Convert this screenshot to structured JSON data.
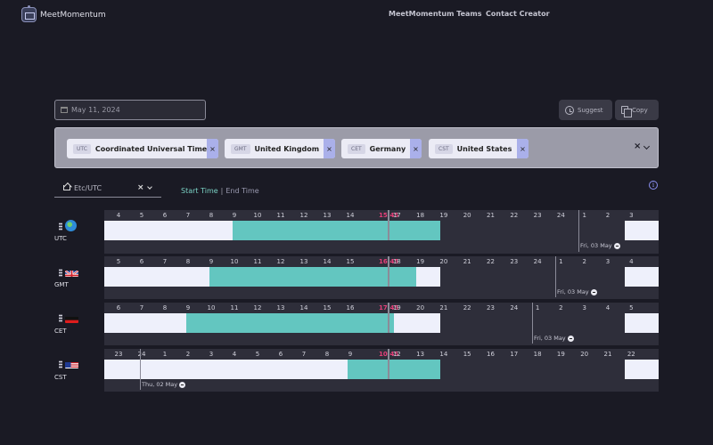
{
  "header": {
    "brand": "MeetMomentum",
    "nav": [
      "MeetMomentum Teams",
      "Contact Creator"
    ]
  },
  "toolbar": {
    "date": "May 11, 2024",
    "suggest_label": "Suggest",
    "copy_label": "Copy"
  },
  "zones": [
    {
      "code": "UTC",
      "name": "Coordinated Universal Time"
    },
    {
      "code": "GMT",
      "name": "United Kingdom"
    },
    {
      "code": "CET",
      "name": "Germany"
    },
    {
      "code": "CST",
      "name": "United States"
    }
  ],
  "base_zone": {
    "label": "Etc/UTC",
    "clear": "×"
  },
  "time_mode": {
    "start": "Start Time",
    "separator": "|",
    "end": "End Time"
  },
  "clear_all": "×",
  "info": "i",
  "rows": [
    {
      "label": "UTC",
      "flag": "globe-icon",
      "hours": [
        "4",
        "5",
        "6",
        "7",
        "8",
        "9",
        "10",
        "11",
        "12",
        "13",
        "14",
        "15:45",
        "17",
        "18",
        "19",
        "20",
        "21",
        "22",
        "23",
        "24",
        "1",
        "2",
        "3"
      ],
      "now_index": 11,
      "day_label": "Fri, 03 May"
    },
    {
      "label": "GMT",
      "flag": "uk-flag-icon",
      "hours": [
        "5",
        "6",
        "7",
        "8",
        "9",
        "10",
        "11",
        "12",
        "13",
        "14",
        "15",
        "16:45",
        "18",
        "19",
        "20",
        "21",
        "22",
        "23",
        "24",
        "1",
        "2",
        "3",
        "4"
      ],
      "now_index": 11,
      "day_label": "Fri, 03 May"
    },
    {
      "label": "CET",
      "flag": "germany-flag-icon",
      "hours": [
        "6",
        "7",
        "8",
        "9",
        "10",
        "11",
        "12",
        "13",
        "14",
        "15",
        "16",
        "17:45",
        "19",
        "20",
        "21",
        "22",
        "23",
        "24",
        "1",
        "2",
        "3",
        "4",
        "5"
      ],
      "now_index": 11,
      "day_label": "Fri, 03 May"
    },
    {
      "label": "CST",
      "flag": "usa-flag-icon",
      "hours": [
        "23",
        "24",
        "1",
        "2",
        "3",
        "4",
        "5",
        "6",
        "7",
        "8",
        "9",
        "10:45",
        "12",
        "13",
        "14",
        "15",
        "16",
        "17",
        "18",
        "19",
        "20",
        "21",
        "22"
      ],
      "now_index": 11,
      "day_label": "Thu, 02 May"
    }
  ],
  "colors": {
    "selected": "#63c6c0",
    "available": "#eef0fb",
    "now": "#e6407a",
    "accent": "#8a8ff0"
  }
}
